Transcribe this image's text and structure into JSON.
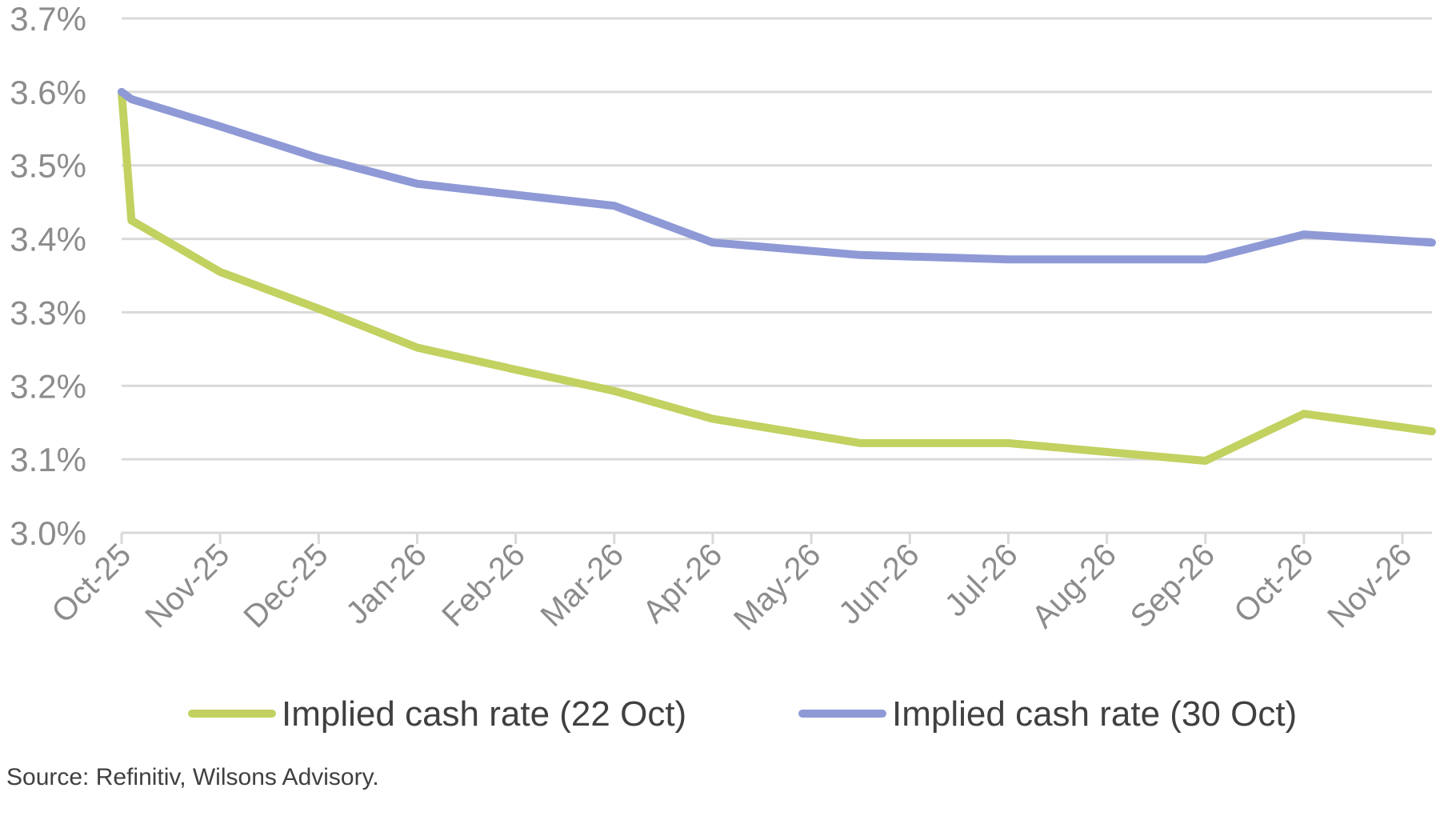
{
  "chart_data": {
    "type": "line",
    "title": "",
    "xlabel": "",
    "ylabel": "",
    "ylim": [
      3.0,
      3.7
    ],
    "y_ticks": [
      "3.0%",
      "3.1%",
      "3.2%",
      "3.3%",
      "3.4%",
      "3.5%",
      "3.6%",
      "3.7%"
    ],
    "y_tick_values": [
      3.0,
      3.1,
      3.2,
      3.3,
      3.4,
      3.5,
      3.6,
      3.7
    ],
    "x_range": [
      0,
      13.3
    ],
    "categories": [
      "Oct-25",
      "Nov-25",
      "Dec-25",
      "Jan-26",
      "Feb-26",
      "Mar-26",
      "Apr-26",
      "May-26",
      "Jun-26",
      "Jul-26",
      "Aug-26",
      "Sep-26",
      "Oct-26",
      "Nov-26"
    ],
    "grid": true,
    "legend_position": "bottom",
    "series": [
      {
        "name": "Implied cash rate (22 Oct)",
        "color": "#c2d160",
        "x": [
          0,
          0.1,
          1.0,
          2.0,
          3.0,
          4.0,
          5.0,
          6.0,
          7.5,
          9.0,
          11.0,
          12.0,
          13.3
        ],
        "values": [
          3.6,
          3.425,
          3.355,
          3.305,
          3.252,
          3.222,
          3.193,
          3.155,
          3.122,
          3.122,
          3.098,
          3.162,
          3.138
        ]
      },
      {
        "name": "Implied cash rate (30 Oct)",
        "color": "#8e99d6",
        "x": [
          0,
          0.1,
          1.0,
          2.0,
          3.0,
          4.0,
          5.0,
          6.0,
          7.5,
          9.0,
          11.0,
          12.0,
          13.3
        ],
        "values": [
          3.6,
          3.59,
          3.553,
          3.51,
          3.475,
          3.46,
          3.445,
          3.395,
          3.378,
          3.372,
          3.372,
          3.406,
          3.395
        ]
      }
    ]
  },
  "source": "Source: Refinitiv, Wilsons Advisory."
}
